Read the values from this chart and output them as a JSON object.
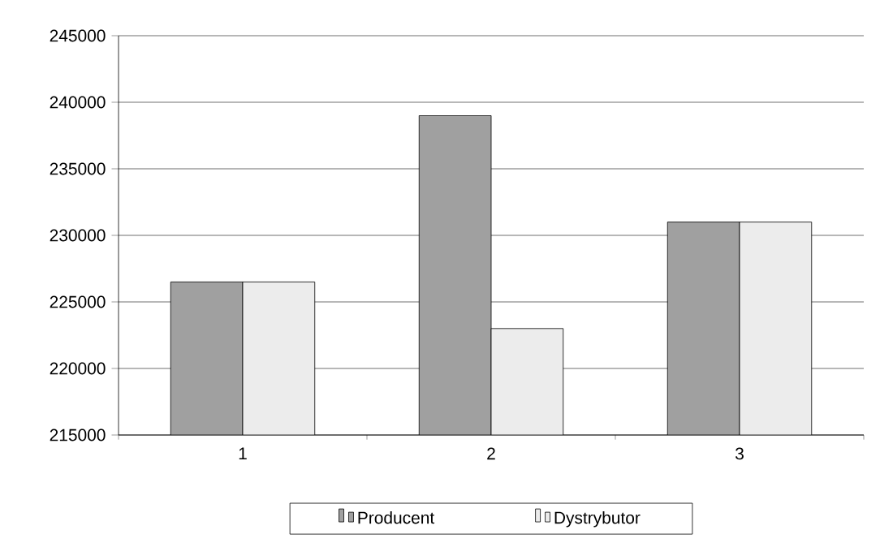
{
  "chart_data": {
    "type": "bar",
    "categories": [
      "1",
      "2",
      "3"
    ],
    "series": [
      {
        "name": "Producent",
        "color": "#a0a0a0",
        "values": [
          226500,
          239000,
          231000
        ]
      },
      {
        "name": "Dystrybutor",
        "color": "#ececec",
        "values": [
          226500,
          223000,
          231000
        ]
      }
    ],
    "ylim": [
      215000,
      245000
    ],
    "yticks": [
      215000,
      220000,
      225000,
      230000,
      235000,
      240000,
      245000
    ],
    "grid": "y",
    "legend": "bottom"
  }
}
